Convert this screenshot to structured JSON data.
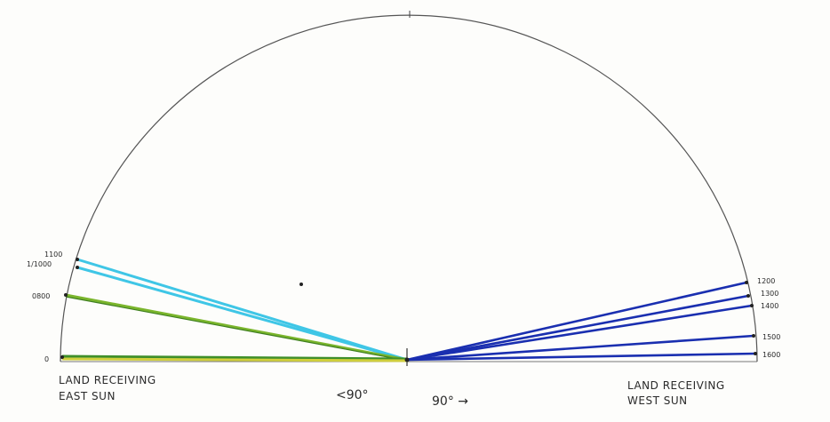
{
  "diagram": {
    "left_caption": [
      "LAND RECEIVING",
      "EAST SUN"
    ],
    "right_caption": [
      "LAND RECEIVING",
      "WEST SUN"
    ],
    "left_degree": "<90°",
    "right_degree": "90° →",
    "left_ray_labels": [
      "1100",
      "1/1000",
      "0800",
      "0"
    ],
    "right_ray_labels": [
      "1200",
      "1300",
      "1400",
      "1500",
      "1600"
    ],
    "colors": {
      "arc": "#555555",
      "east_cyan": "#3fc6e6",
      "east_green": "#5a9e2a",
      "east_yellow": "#c9c93a",
      "west_blue": "#1a2fb0"
    }
  }
}
